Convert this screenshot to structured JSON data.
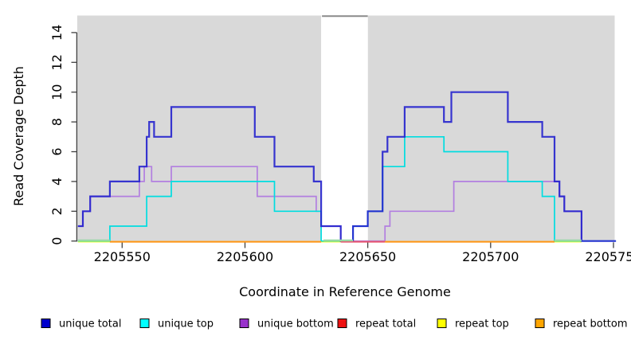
{
  "chart_data": {
    "type": "line",
    "subtype": "step-coverage-plot",
    "title": "",
    "xlabel": "Coordinate in Reference Genome",
    "ylabel": "Read Coverage Depth",
    "x_ticks": [
      2205550,
      2205600,
      2205650,
      2205700,
      2205750
    ],
    "x_tick_labels": [
      "2205550",
      "2205600",
      "2205650",
      "2205700",
      "2205750"
    ],
    "y_ticks": [
      0,
      2,
      4,
      6,
      8,
      10,
      12,
      14
    ],
    "y_tick_labels": [
      "0",
      "2",
      "4",
      "6",
      "8",
      "10",
      "12",
      "14"
    ],
    "xlim": [
      2205531.7,
      2205752
    ],
    "ylim": [
      0,
      15.1
    ],
    "grid": false,
    "legend_position": "bottom",
    "colors": {
      "shaded_band": "#d9d9d9",
      "gap_border": "#8a8a8a",
      "axis": "#404040",
      "text": "#000000"
    },
    "shaded_bands": [
      {
        "x0": 2205531.7,
        "x1": 2205631
      },
      {
        "x0": 2205650,
        "x1": 2205750.5
      }
    ],
    "white_gap": {
      "x0": 2205631,
      "x1": 2205650
    },
    "series": [
      {
        "name": "unique total",
        "line_color": "#2421cd",
        "legend_color": "#0000cd",
        "steps": [
          [
            2205532,
            1
          ],
          [
            2205534,
            2
          ],
          [
            2205537,
            3
          ],
          [
            2205545,
            4
          ],
          [
            2205557,
            5
          ],
          [
            2205560,
            7
          ],
          [
            2205561,
            8
          ],
          [
            2205563,
            7
          ],
          [
            2205570,
            9
          ],
          [
            2205604,
            7
          ],
          [
            2205612,
            5
          ],
          [
            2205628,
            4
          ],
          [
            2205631,
            1
          ],
          [
            2205639,
            0
          ],
          [
            2205644,
            1
          ],
          [
            2205650,
            2
          ],
          [
            2205656,
            6
          ],
          [
            2205658,
            7
          ],
          [
            2205665,
            9
          ],
          [
            2205681,
            8
          ],
          [
            2205684,
            10
          ],
          [
            2205707,
            8
          ],
          [
            2205721,
            7
          ],
          [
            2205726,
            4
          ],
          [
            2205728,
            3
          ],
          [
            2205730,
            2
          ],
          [
            2205737,
            0
          ]
        ],
        "x_end": 2205751
      },
      {
        "name": "unique top",
        "line_color": "#00dde0",
        "legend_color": "#00ffff",
        "steps": [
          [
            2205532,
            0
          ],
          [
            2205545,
            1
          ],
          [
            2205560,
            3
          ],
          [
            2205570,
            4
          ],
          [
            2205612,
            2
          ],
          [
            2205631,
            0
          ],
          [
            2205644,
            1
          ],
          [
            2205650,
            2
          ],
          [
            2205656,
            5
          ],
          [
            2205665,
            7
          ],
          [
            2205681,
            6
          ],
          [
            2205707,
            4
          ],
          [
            2205721,
            3
          ],
          [
            2205726,
            0
          ]
        ],
        "x_end": 2205751
      },
      {
        "name": "unique bottom",
        "line_color": "#b27fe0",
        "legend_color": "#9932cc",
        "steps": [
          [
            2205532,
            1
          ],
          [
            2205534,
            2
          ],
          [
            2205537,
            3
          ],
          [
            2205557,
            4
          ],
          [
            2205559,
            5
          ],
          [
            2205562,
            4
          ],
          [
            2205570,
            5
          ],
          [
            2205605,
            3
          ],
          [
            2205629,
            2
          ],
          [
            2205631,
            1
          ],
          [
            2205639,
            0
          ],
          [
            2205657,
            1
          ],
          [
            2205659,
            2
          ],
          [
            2205685,
            4
          ],
          [
            2205728,
            3
          ],
          [
            2205730,
            2
          ],
          [
            2205737,
            0
          ]
        ],
        "x_end": 2205751
      },
      {
        "name": "repeat total",
        "line_color": "#e8546e",
        "legend_color": "#ee1111",
        "value": 0,
        "segments": [
          [
            2205639,
            2205657
          ]
        ]
      },
      {
        "name": "repeat top",
        "line_color": "#ffff00",
        "legend_color": "#ffff00",
        "value": 0,
        "segments": [
          [
            2205532,
            2205737
          ]
        ]
      },
      {
        "name": "repeat bottom",
        "line_color": "#ff9412",
        "legend_color": "#ffa500",
        "value": 0,
        "segments": [
          [
            2205545,
            2205631
          ],
          [
            2205657,
            2205726
          ]
        ]
      }
    ],
    "baseline_blend_segments": [
      {
        "color": "#96d8a5",
        "x0": 2205532,
        "x1": 2205545
      },
      {
        "color": "#96d8a5",
        "x0": 2205632,
        "x1": 2205644
      },
      {
        "color": "#96d8a5",
        "x0": 2205726,
        "x1": 2205737
      }
    ]
  }
}
